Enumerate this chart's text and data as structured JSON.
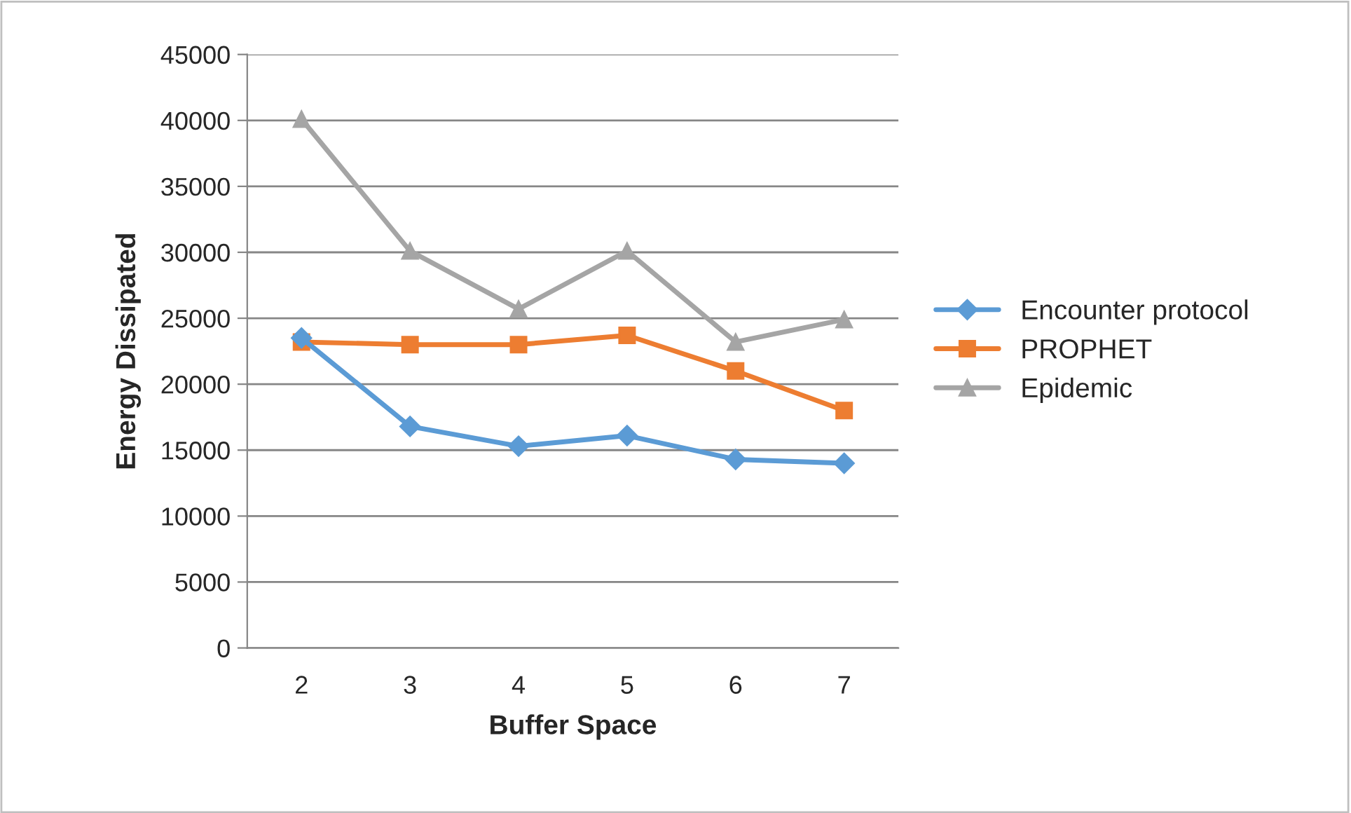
{
  "chart_data": {
    "type": "line",
    "xlabel": "Buffer Space",
    "ylabel": "Energy Dissipated",
    "categories": [
      "2",
      "3",
      "4",
      "5",
      "6",
      "7"
    ],
    "series": [
      {
        "name": "Encounter protocol",
        "color": "#5b9bd5",
        "marker": "diamond",
        "values": [
          23500,
          16800,
          15300,
          16100,
          14300,
          14000
        ]
      },
      {
        "name": "PROPHET",
        "color": "#ed7d31",
        "marker": "square",
        "values": [
          23200,
          23000,
          23000,
          23700,
          21000,
          18000
        ]
      },
      {
        "name": "Epidemic",
        "color": "#a5a5a5",
        "marker": "triangle",
        "values": [
          40100,
          30100,
          25700,
          30100,
          23200,
          24900
        ]
      }
    ],
    "ylim": [
      0,
      45000
    ],
    "yticks": [
      0,
      5000,
      10000,
      15000,
      20000,
      25000,
      30000,
      35000,
      40000,
      45000
    ],
    "grid": "y",
    "legend": "right",
    "line_style": "solid"
  }
}
